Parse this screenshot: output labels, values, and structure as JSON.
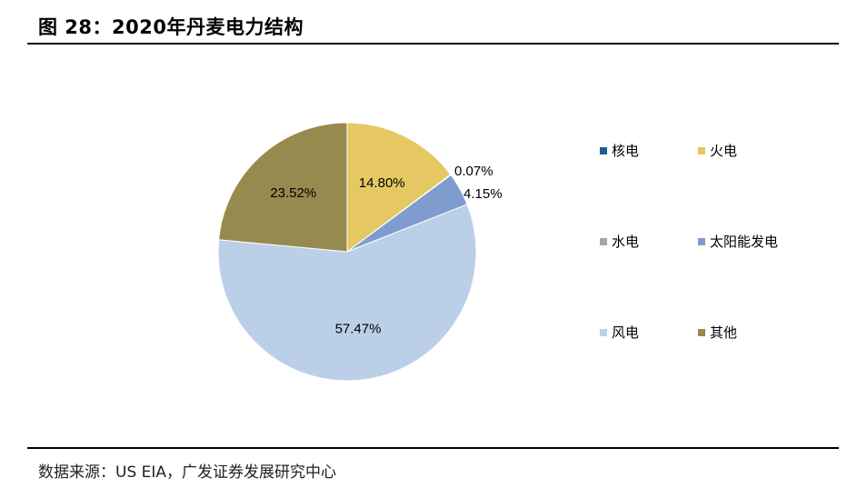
{
  "title": "图 28：2020年丹麦电力结构",
  "source": "数据来源：US EIA，广发证券发展研究中心",
  "chart_data": {
    "type": "pie",
    "slices": [
      {
        "name": "核电",
        "value": 0.0,
        "label": "",
        "color": "#1f5c99"
      },
      {
        "name": "火电",
        "value": 14.8,
        "label": "14.80%",
        "color": "#e6c863"
      },
      {
        "name": "水电",
        "value": 0.07,
        "label": "0.07%",
        "color": "#a6a6a6"
      },
      {
        "name": "太阳能发电",
        "value": 4.15,
        "label": "4.15%",
        "color": "#7f9ccf"
      },
      {
        "name": "风电",
        "value": 57.47,
        "label": "57.47%",
        "color": "#bccfe8"
      },
      {
        "name": "其他",
        "value": 23.52,
        "label": "23.52%",
        "color": "#968a4f"
      }
    ],
    "legend_position": "right"
  }
}
